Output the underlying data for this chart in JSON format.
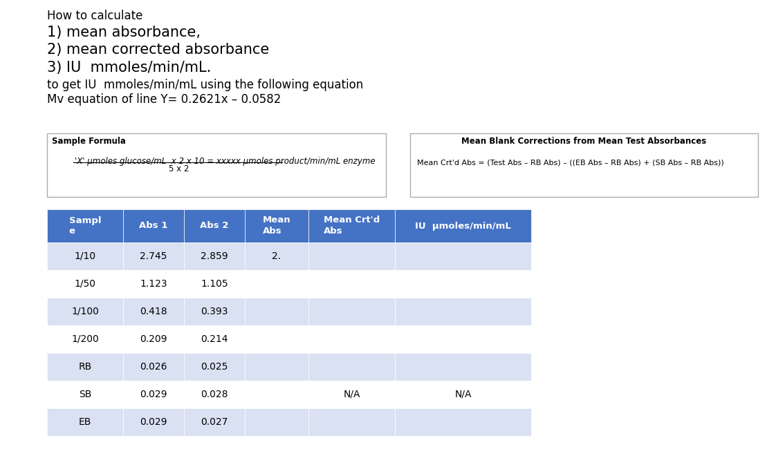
{
  "title_lines": [
    "How to calculate",
    "1) mean absorbance,",
    "2) mean corrected absorbance",
    "3) IU  mmoles/min/mL.",
    "to get IU  mmoles/min/mL using the following equation",
    "Mv equation of line Y= 0.2621x – 0.0582"
  ],
  "title_fontsizes": [
    12,
    15,
    15,
    15,
    12,
    12
  ],
  "title_fontweights": [
    "normal",
    "normal",
    "normal",
    "normal",
    "normal",
    "normal"
  ],
  "sample_formula_title": "Sample Formula",
  "sample_formula_line1": "'X' μmoles glucose/mL  x 2 x 10 = xxxxx μmoles product/min/mL enzyme",
  "sample_formula_line2": "5 x 2",
  "blank_corrections_title": "Mean Blank Corrections from Mean Test Absorbances",
  "blank_corrections_formula": "Mean Crt'd Abs = (Test Abs – RB Abs) – ((EB Abs – RB Abs) + (SB Abs – RB Abs))",
  "header_bg": "#4472c4",
  "header_fg": "#ffffff",
  "row_bg_odd": "#d9e1f2",
  "row_bg_even": "#ffffff",
  "table_headers": [
    "Sampl\ne",
    "Abs 1",
    "Abs 2",
    "Mean\nAbs",
    "Mean Crt'd\nAbs",
    "IU  μmoles/min/mL"
  ],
  "table_rows": [
    [
      "1/10",
      "2.745",
      "2.859",
      "2.",
      "",
      ""
    ],
    [
      "1/50",
      "1.123",
      "1.105",
      "",
      "",
      ""
    ],
    [
      "1/100",
      "0.418",
      "0.393",
      "",
      "",
      ""
    ],
    [
      "1/200",
      "0.209",
      "0.214",
      "",
      "",
      ""
    ],
    [
      "RB",
      "0.026",
      "0.025",
      "",
      "",
      ""
    ],
    [
      "SB",
      "0.029",
      "0.028",
      "",
      "N/A",
      "N/A"
    ],
    [
      "EB",
      "0.029",
      "0.027",
      "",
      "",
      ""
    ]
  ],
  "background_color": "#ffffff"
}
